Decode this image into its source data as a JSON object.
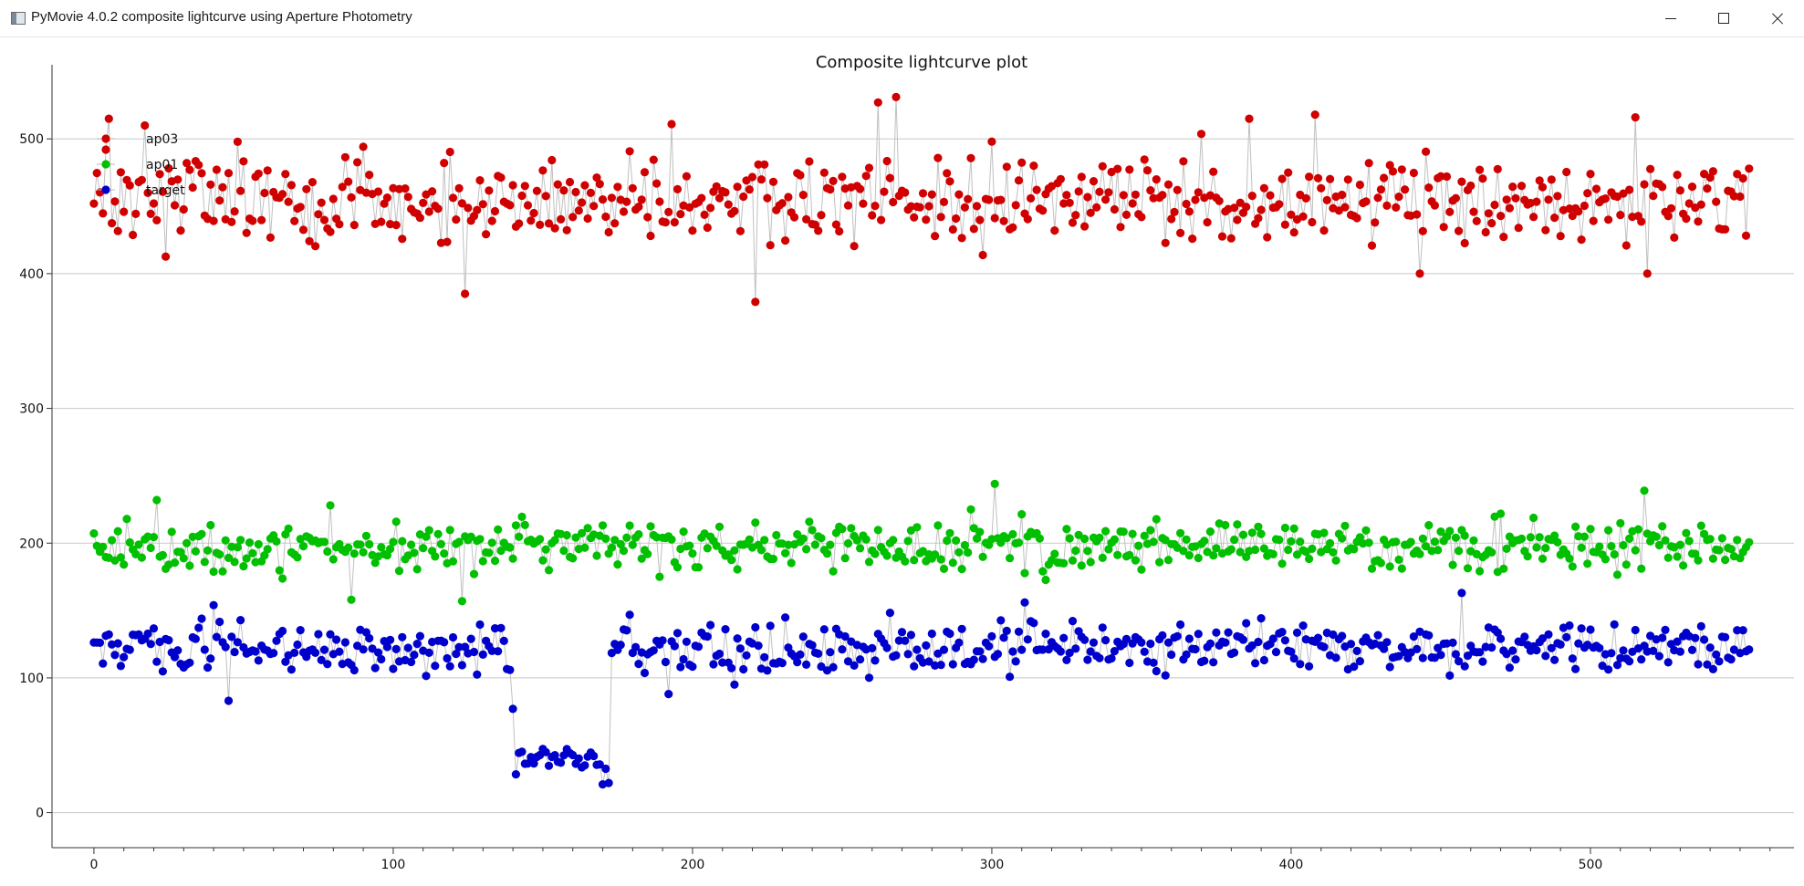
{
  "window": {
    "title": "PyMovie 4.0.2 composite lightcurve using Aperture Photometry",
    "icon": "app-window-icon",
    "buttons": {
      "minimize": "minimize-icon",
      "maximize": "maximize-icon",
      "close": "close-icon"
    }
  },
  "chart_data": {
    "type": "scatter",
    "title": "Composite lightcurve plot",
    "xlabel": "",
    "ylabel": "",
    "xlim": [
      -14,
      568
    ],
    "ylim": [
      -26,
      555
    ],
    "xticks": [
      0,
      100,
      200,
      300,
      400,
      500
    ],
    "yticks": [
      0,
      100,
      200,
      300,
      400,
      500
    ],
    "grid": "horizontal",
    "legend_position": "top-left",
    "connect_points": true,
    "x_start": 0,
    "x_end": 553,
    "series": [
      {
        "name": "ap03",
        "color": "#d00000",
        "base": 455,
        "spread": 22,
        "dips": [],
        "outliers": [
          [
            5,
            515
          ],
          [
            17,
            510
          ],
          [
            124,
            385
          ],
          [
            193,
            511
          ],
          [
            221,
            379
          ],
          [
            262,
            527
          ],
          [
            268,
            531
          ],
          [
            300,
            498
          ],
          [
            386,
            515
          ],
          [
            408,
            518
          ],
          [
            443,
            400
          ],
          [
            515,
            516
          ],
          [
            519,
            400
          ]
        ]
      },
      {
        "name": "ap01",
        "color": "#00c000",
        "base": 198,
        "spread": 13,
        "dips": [],
        "outliers": [
          [
            21,
            232
          ],
          [
            79,
            228
          ],
          [
            86,
            158
          ],
          [
            123,
            157
          ],
          [
            301,
            244
          ],
          [
            518,
            239
          ]
        ]
      },
      {
        "name": "target",
        "color": "#0000cc",
        "base": 122,
        "spread": 13,
        "dips": [
          {
            "from": 141,
            "to": 171,
            "level": 40
          }
        ],
        "outliers": [
          [
            40,
            154
          ],
          [
            45,
            83
          ],
          [
            140,
            77
          ],
          [
            170,
            21
          ],
          [
            172,
            22
          ],
          [
            192,
            88
          ],
          [
            214,
            95
          ],
          [
            311,
            156
          ],
          [
            457,
            163
          ],
          [
            553,
            121
          ]
        ]
      }
    ]
  }
}
